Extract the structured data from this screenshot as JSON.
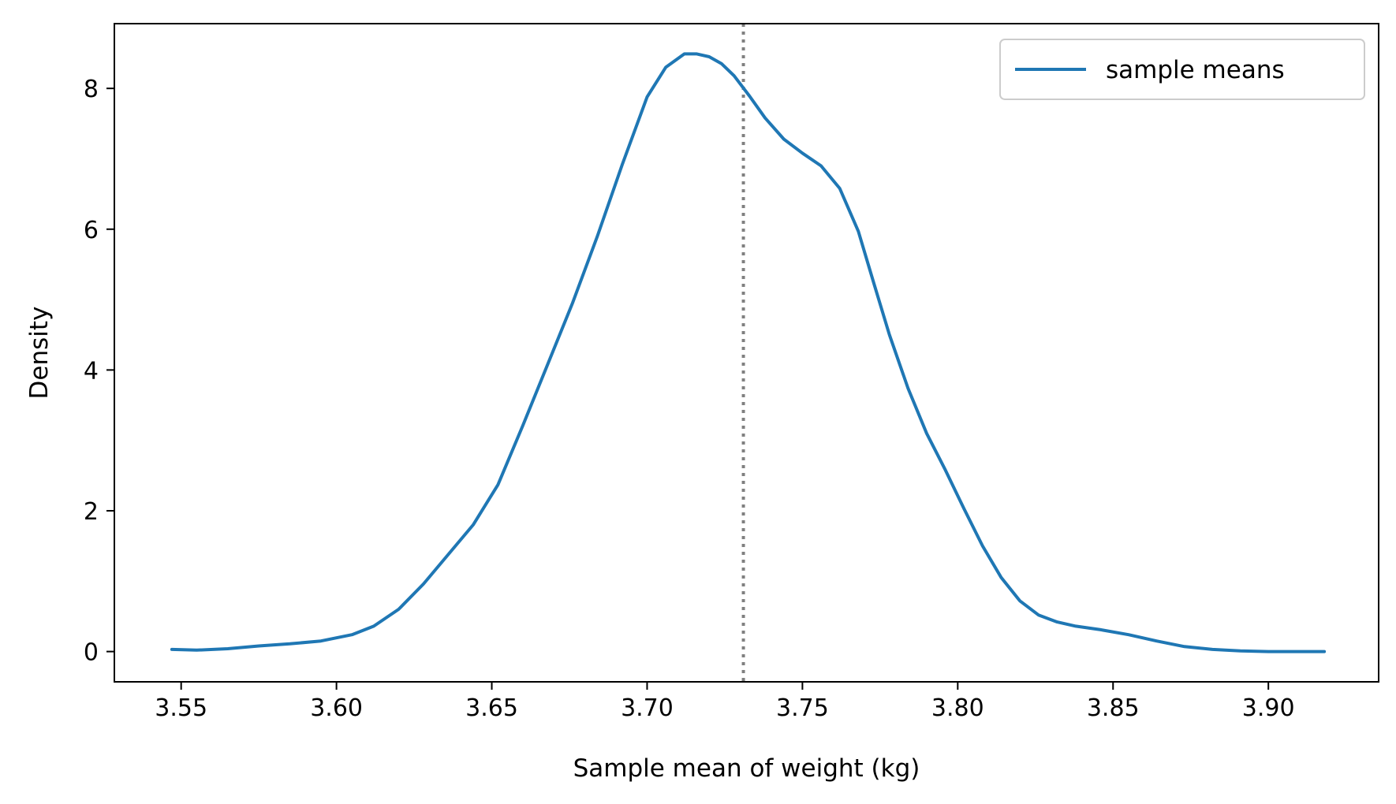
{
  "chart_data": {
    "type": "line",
    "title": "",
    "xlabel": "Sample mean of weight (kg)",
    "ylabel": "Density",
    "xlim": [
      3.5285,
      3.9355
    ],
    "ylim": [
      -0.43,
      8.92
    ],
    "xticks": [
      3.55,
      3.6,
      3.65,
      3.7,
      3.75,
      3.8,
      3.85,
      3.9
    ],
    "xtick_labels": [
      "3.55",
      "3.60",
      "3.65",
      "3.70",
      "3.75",
      "3.80",
      "3.85",
      "3.90"
    ],
    "yticks": [
      0,
      2,
      4,
      6,
      8
    ],
    "ytick_labels": [
      "0",
      "2",
      "4",
      "6",
      "8"
    ],
    "grid": false,
    "legend": {
      "position": "top-right",
      "entries": [
        "sample means"
      ]
    },
    "series": [
      {
        "name": "sample means",
        "color": "#1f77b4",
        "x": [
          3.547,
          3.555,
          3.565,
          3.575,
          3.585,
          3.595,
          3.605,
          3.612,
          3.62,
          3.628,
          3.636,
          3.644,
          3.652,
          3.66,
          3.668,
          3.676,
          3.684,
          3.692,
          3.7,
          3.706,
          3.712,
          3.716,
          3.72,
          3.724,
          3.728,
          3.733,
          3.738,
          3.744,
          3.75,
          3.756,
          3.762,
          3.768,
          3.773,
          3.778,
          3.784,
          3.79,
          3.796,
          3.802,
          3.808,
          3.814,
          3.82,
          3.826,
          3.832,
          3.838,
          3.846,
          3.855,
          3.864,
          3.873,
          3.882,
          3.891,
          3.9,
          3.909,
          3.918
        ],
        "y": [
          0.03,
          0.02,
          0.04,
          0.08,
          0.11,
          0.15,
          0.24,
          0.36,
          0.6,
          0.96,
          1.38,
          1.8,
          2.37,
          3.21,
          4.08,
          4.95,
          5.9,
          6.92,
          7.88,
          8.3,
          8.49,
          8.49,
          8.45,
          8.35,
          8.18,
          7.89,
          7.58,
          7.28,
          7.08,
          6.9,
          6.58,
          5.97,
          5.23,
          4.5,
          3.74,
          3.1,
          2.58,
          2.03,
          1.5,
          1.05,
          0.72,
          0.52,
          0.42,
          0.36,
          0.31,
          0.24,
          0.15,
          0.07,
          0.03,
          0.01,
          0.0,
          0.0,
          0.0
        ]
      }
    ],
    "reference_line": {
      "orientation": "vertical",
      "x": 3.731,
      "style": "dotted",
      "color": "#808080"
    }
  }
}
